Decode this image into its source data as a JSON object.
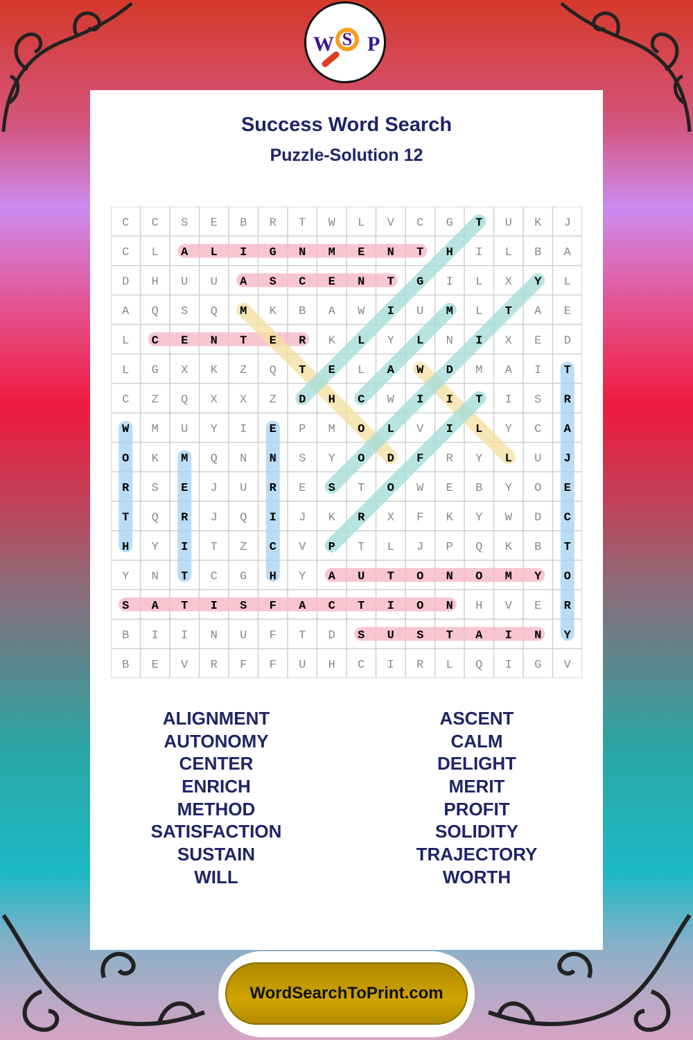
{
  "logo": {
    "letters": [
      "W",
      "S",
      "P"
    ]
  },
  "header": {
    "title": "Success Word Search",
    "subtitle": "Puzzle-Solution 12"
  },
  "grid": [
    "CCSEBRTWLVCGTUKJ",
    "CLALIGNMENTHILBA",
    "DHUUASCENTGILXYL",
    "AQSQMKBAWIUMLTAE",
    "LCENTERKLYLNIXED",
    "LGXKZQTELAWDMAIT",
    "CZQXXZDHCWIITISR",
    "WMUYIEPMOLVILYCA",
    "OKMQNNSYODFRYLUJ",
    "RSEJURESTOWEBYOE",
    "TQRJQIJKRXFKYWDC",
    "HYITZCVPTLJPQKBT",
    "YNTCGHYAUTONOMYO",
    "SATISFACTIONHVER",
    "BIINUFTDSUSTAINY",
    "BEVRFFUHCIRLQIGV"
  ],
  "colors": {
    "horizontal": "#f7b9c8",
    "vertical": "#a9d4f2",
    "diagonal_up": "#a6dedb",
    "diagonal_down": "#f6e0a4",
    "title": "#1e2466",
    "footer": "#c9a000"
  },
  "solutions": [
    {
      "word": "ALIGNMENT",
      "start": [
        1,
        2
      ],
      "end": [
        1,
        10
      ],
      "dir": "horizontal"
    },
    {
      "word": "ASCENT",
      "start": [
        2,
        4
      ],
      "end": [
        2,
        9
      ],
      "dir": "horizontal"
    },
    {
      "word": "CENTER",
      "start": [
        4,
        1
      ],
      "end": [
        4,
        6
      ],
      "dir": "horizontal"
    },
    {
      "word": "AUTONOMY",
      "start": [
        12,
        7
      ],
      "end": [
        12,
        14
      ],
      "dir": "horizontal"
    },
    {
      "word": "SATISFACTION",
      "start": [
        13,
        0
      ],
      "end": [
        13,
        11
      ],
      "dir": "horizontal"
    },
    {
      "word": "SUSTAIN",
      "start": [
        14,
        8
      ],
      "end": [
        14,
        14
      ],
      "dir": "horizontal"
    },
    {
      "word": "WORTH",
      "start": [
        7,
        0
      ],
      "end": [
        11,
        0
      ],
      "dir": "vertical"
    },
    {
      "word": "MERIT",
      "start": [
        8,
        2
      ],
      "end": [
        12,
        2
      ],
      "dir": "vertical"
    },
    {
      "word": "ENRICH",
      "start": [
        7,
        5
      ],
      "end": [
        12,
        5
      ],
      "dir": "vertical"
    },
    {
      "word": "TRAJECTORY",
      "start": [
        5,
        15
      ],
      "end": [
        14,
        15
      ],
      "dir": "vertical"
    },
    {
      "word": "METHOD",
      "start": [
        3,
        4
      ],
      "end": [
        8,
        9
      ],
      "dir": "diagonal_down"
    },
    {
      "word": "WILL",
      "start": [
        5,
        10
      ],
      "end": [
        8,
        13
      ],
      "dir": "diagonal_down"
    },
    {
      "word": "DELIGHT",
      "start": [
        6,
        6
      ],
      "end": [
        0,
        12
      ],
      "dir": "diagonal_up"
    },
    {
      "word": "CALM",
      "start": [
        6,
        8
      ],
      "end": [
        3,
        11
      ],
      "dir": "diagonal_up"
    },
    {
      "word": "SOLIDITY",
      "start": [
        9,
        7
      ],
      "end": [
        2,
        14
      ],
      "dir": "diagonal_up"
    },
    {
      "word": "PROFIT",
      "start": [
        11,
        7
      ],
      "end": [
        6,
        12
      ],
      "dir": "diagonal_up"
    }
  ],
  "word_list": {
    "left": [
      "ALIGNMENT",
      "AUTONOMY",
      "CENTER",
      "ENRICH",
      "METHOD",
      "SATISFACTION",
      "SUSTAIN",
      "WILL"
    ],
    "right": [
      "ASCENT",
      "CALM",
      "DELIGHT",
      "MERIT",
      "PROFIT",
      "SOLIDITY",
      "TRAJECTORY",
      "WORTH"
    ]
  },
  "footer": {
    "label": "WordSearchToPrint.com"
  }
}
